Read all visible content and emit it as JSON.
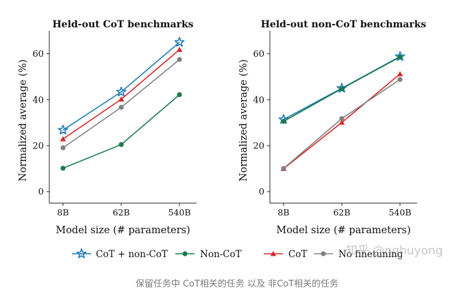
{
  "chart_data": [
    {
      "type": "line",
      "title": "Held-out CoT benchmarks",
      "xlabel": "Model size (# parameters)",
      "ylabel": "Normalized average (%)",
      "categories": [
        "8B",
        "62B",
        "540B"
      ],
      "yticks": [
        0,
        20,
        40,
        60
      ],
      "ylim": [
        -5,
        70
      ],
      "grid": false,
      "series": [
        {
          "name": "CoT + non-CoT",
          "color": "#1f7bb6",
          "marker": "star",
          "values": [
            26.8,
            43.4,
            65.0
          ]
        },
        {
          "name": "Non-CoT",
          "color": "#1a7a4a",
          "marker": "circle",
          "values": [
            10.2,
            20.5,
            42.2
          ]
        },
        {
          "name": "CoT",
          "color": "#d62728",
          "marker": "triangle",
          "values": [
            22.9,
            40.2,
            61.8
          ]
        },
        {
          "name": "No finetuning",
          "color": "#808080",
          "marker": "circle",
          "values": [
            19.1,
            36.7,
            57.5
          ]
        }
      ]
    },
    {
      "type": "line",
      "title": "Held-out non-CoT benchmarks",
      "xlabel": "Model size (# parameters)",
      "ylabel": "Normalized average (%)",
      "categories": [
        "8B",
        "62B",
        "540B"
      ],
      "yticks": [
        0,
        20,
        40,
        60
      ],
      "ylim": [
        -5,
        70
      ],
      "grid": false,
      "series": [
        {
          "name": "CoT + non-CoT",
          "color": "#1f7bb6",
          "marker": "star",
          "values": [
            31.4,
            45.0,
            58.8
          ]
        },
        {
          "name": "Non-CoT",
          "color": "#1a7a4a",
          "marker": "circle",
          "values": [
            30.6,
            44.8,
            58.6
          ]
        },
        {
          "name": "CoT",
          "color": "#d62728",
          "marker": "triangle",
          "values": [
            10.0,
            30.1,
            51.2
          ]
        },
        {
          "name": "No finetuning",
          "color": "#808080",
          "marker": "circle",
          "values": [
            10.1,
            31.8,
            48.8
          ]
        }
      ]
    }
  ],
  "legend": {
    "placement": "bottom",
    "items": [
      {
        "label": "CoT + non-CoT",
        "color": "#1f7bb6",
        "marker": "star"
      },
      {
        "label": "Non-CoT",
        "color": "#1a7a4a",
        "marker": "circle"
      },
      {
        "label": "CoT",
        "color": "#d62728",
        "marker": "triangle"
      },
      {
        "label": "No finetuning",
        "color": "#808080",
        "marker": "circle"
      }
    ]
  },
  "watermark": "知乎 @nghuyong",
  "caption": "保留任务中 CoT相关的任务 以及 非CoT相关的任务"
}
